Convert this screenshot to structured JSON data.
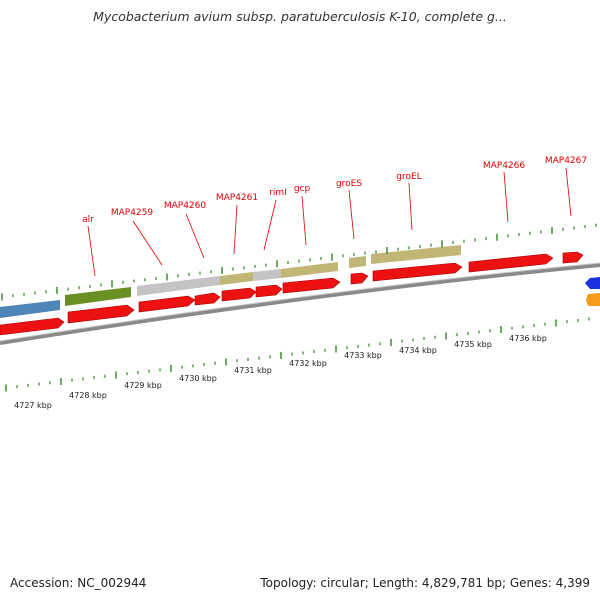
{
  "title": "Mycobacterium avium subsp. paratuberculosis K-10, complete g...",
  "footer": {
    "accession": "Accession: NC_002944",
    "topology": "Topology: circular; Length: 4,829,781 bp; Genes: 4,399"
  },
  "colors": {
    "gene": "#ee1111",
    "gene_edge": "#990000",
    "backbone": "#8a8a8a",
    "tick": "#2a8a1a",
    "label": "#e00000",
    "blue_feature": "#4f86b8",
    "green_feature": "#6a8f23",
    "gray_feature": "#c4c4c4",
    "tan_feature": "#c0b675",
    "arrow_blue": "#1a32e0",
    "arrow_orange": "#f59a1a"
  },
  "gene_labels": [
    "alr",
    "MAP4259",
    "MAP4260",
    "MAP4261",
    "rimI",
    "gcp",
    "groES",
    "groEL",
    "MAP4266",
    "MAP4267"
  ],
  "kbp_labels": [
    "4727 kbp",
    "4728 kbp",
    "4729 kbp",
    "4730 kbp",
    "4731 kbp",
    "4732 kbp",
    "4733 kbp",
    "4734 kbp",
    "4735 kbp",
    "4736 kbp"
  ]
}
